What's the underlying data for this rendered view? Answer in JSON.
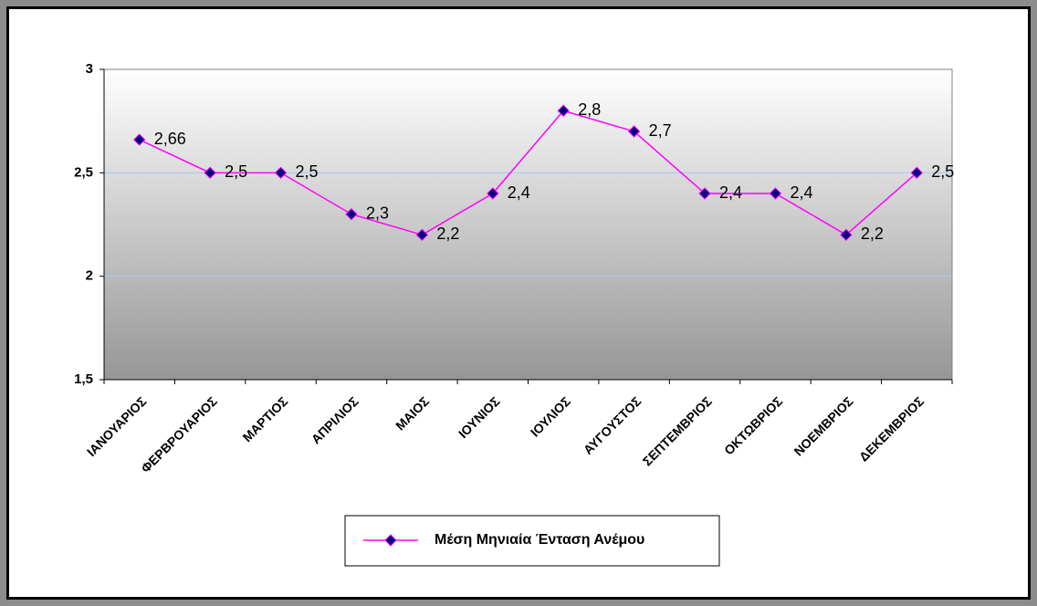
{
  "chart_data": {
    "type": "line",
    "categories": [
      "ΙΑΝΟΥΑΡΙΟΣ",
      "ΦΕΡΒΡΟΥΑΡΙΟΣ",
      "ΜΑΡΤΙΟΣ",
      "ΑΠΡΙΛΙΟΣ",
      "ΜΑΙΟΣ",
      "ΙΟΥΝΙΟΣ",
      "ΙΟΥΛΙΟΣ",
      "ΑΥΓΟΥΣΤΟΣ",
      "ΣΕΠΤΕΜΒΡΙΟΣ",
      "ΟΚΤΩΒΡΙΟΣ",
      "ΝΟΕΜΒΡΙΟΣ",
      "ΔΕΚΕΜΒΡΙΟΣ"
    ],
    "series": [
      {
        "name": "Μέση Μηνιαία Ένταση Ανέμου",
        "color": "#ff00ff",
        "marker_color": "#000080",
        "values": [
          2.66,
          2.5,
          2.5,
          2.3,
          2.2,
          2.4,
          2.8,
          2.7,
          2.4,
          2.4,
          2.2,
          2.5
        ],
        "value_labels": [
          "2,66",
          "2,5",
          "2,5",
          "2,3",
          "2,2",
          "2,4",
          "2,8",
          "2,7",
          "2,4",
          "2,4",
          "2,2",
          "2,5"
        ]
      }
    ],
    "ylim": [
      1.5,
      3
    ],
    "yticks": [
      {
        "value": 1.5,
        "label": "1,5"
      },
      2,
      {
        "value": 2.5,
        "label": "2,5"
      },
      3
    ],
    "grid": true,
    "legend": "bottom"
  }
}
